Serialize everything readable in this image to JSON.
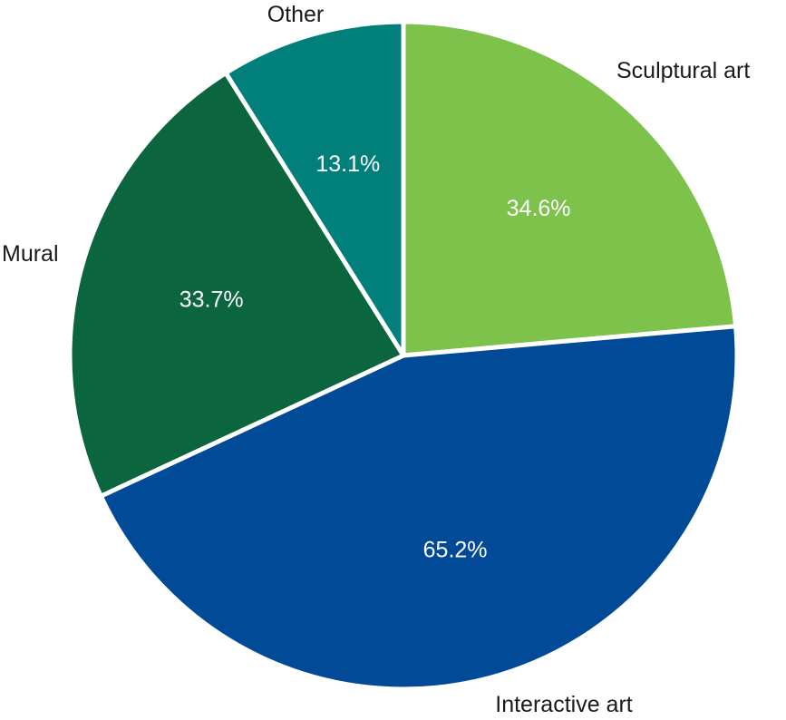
{
  "chart_data": {
    "type": "pie",
    "start_angle_deg": 0,
    "direction": "clockwise",
    "slices": [
      {
        "category": "Sculptural art",
        "value": 34.6,
        "label": "34.6%",
        "color": "#7dc24b"
      },
      {
        "category": "Interactive art",
        "value": 65.2,
        "label": "65.2%",
        "color": "#004a98"
      },
      {
        "category": "Mural",
        "value": 33.7,
        "label": "33.7%",
        "color": "#0b6640"
      },
      {
        "category": "Other",
        "value": 13.1,
        "label": "13.1%",
        "color": "#007f7b"
      }
    ],
    "title": "",
    "legend": "none"
  }
}
